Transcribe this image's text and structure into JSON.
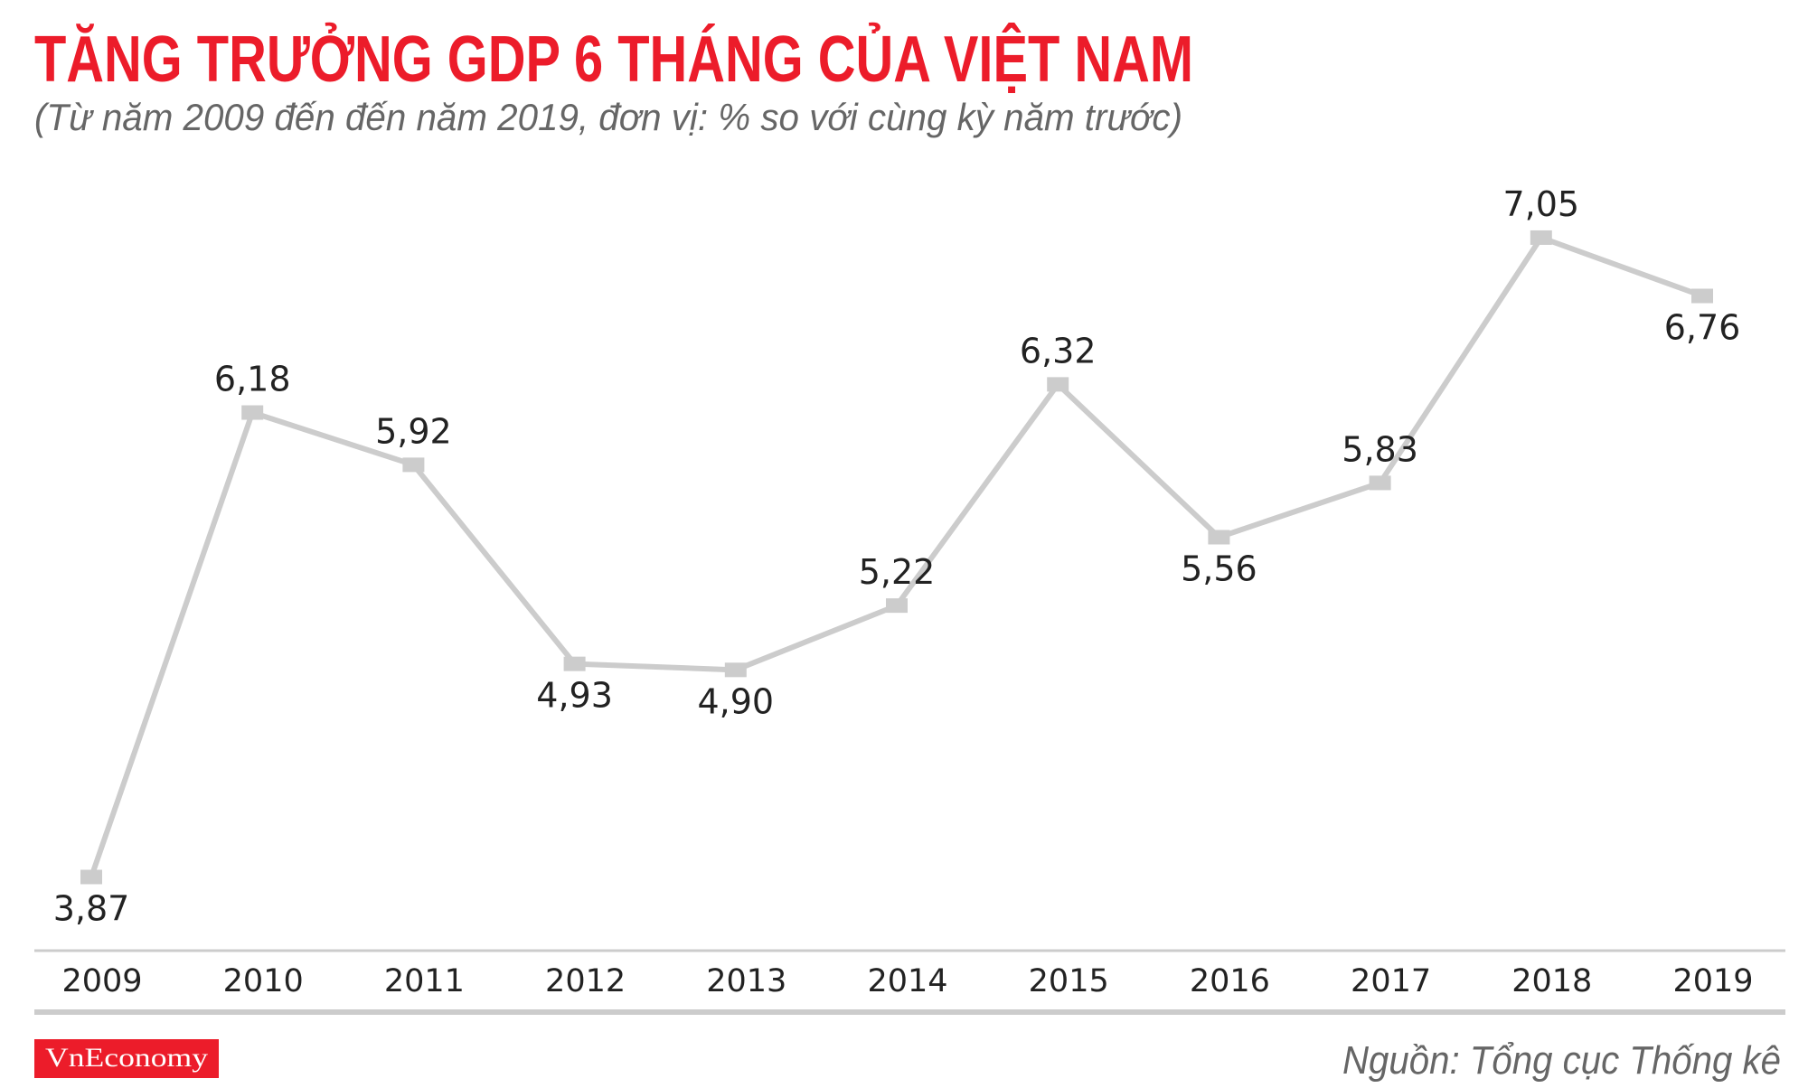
{
  "chart_data": {
    "type": "line",
    "title": "TĂNG TRƯỞNG GDP 6 THÁNG CỦA VIỆT NAM",
    "subtitle": "(Từ năm 2009 đến đến năm 2019, đơn vị: % so với cùng kỳ năm trước)",
    "categories": [
      "2009",
      "2010",
      "2011",
      "2012",
      "2013",
      "2014",
      "2015",
      "2016",
      "2017",
      "2018",
      "2019"
    ],
    "values": [
      3.87,
      6.18,
      5.92,
      4.93,
      4.9,
      5.22,
      6.32,
      5.56,
      5.83,
      7.05,
      6.76
    ],
    "data_labels": [
      "3,87",
      "6,18",
      "5,92",
      "4,93",
      "4,90",
      "5,22",
      "6,32",
      "5,56",
      "5,83",
      "7,05",
      "6,76"
    ],
    "label_positions": [
      "below",
      "above",
      "above",
      "below",
      "below",
      "above",
      "above",
      "below",
      "above",
      "above",
      "below"
    ],
    "grid": false,
    "colors": {
      "title": "#ec1c2a",
      "line": "#cccccc",
      "text": "#222222"
    }
  },
  "footer": {
    "logo": "VnEconomy",
    "source": "Nguồn: Tổng cục Thống kê"
  }
}
